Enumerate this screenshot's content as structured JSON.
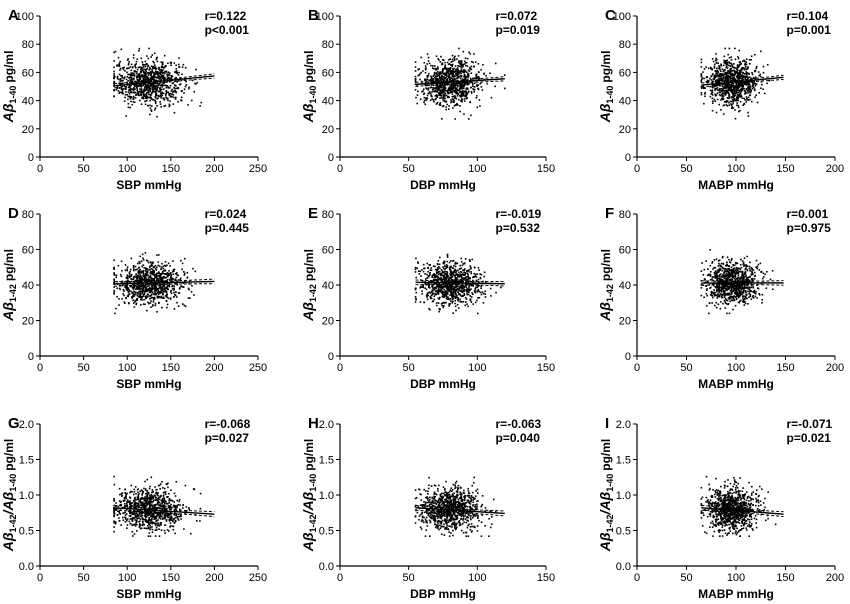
{
  "chart_data": [
    {
      "panel": "A",
      "type": "scatter",
      "xlabel": "SBP mmHg",
      "ylabel_main": "Aβ",
      "ylabel_sub": "1-40",
      "ylabel_unit": "pg/ml",
      "xlim": [
        0,
        250
      ],
      "xticks": [
        0,
        50,
        100,
        150,
        200,
        250
      ],
      "ylim": [
        0,
        100
      ],
      "yticks": [
        0,
        20,
        40,
        60,
        80,
        100
      ],
      "r": "r=0.122",
      "p": "p<0.001",
      "x_center": 125,
      "x_spread": 20,
      "x_range": [
        85,
        200
      ],
      "y_center": 53,
      "y_spread": 8,
      "y_range": [
        27,
        77
      ],
      "n_points": 900,
      "fit": [
        [
          85,
          50.5
        ],
        [
          200,
          57.5
        ]
      ],
      "ci_width": 1.5
    },
    {
      "panel": "B",
      "type": "scatter",
      "xlabel": "DBP mmHg",
      "ylabel_main": "Aβ",
      "ylabel_sub": "1-40",
      "ylabel_unit": "pg/ml",
      "xlim": [
        0,
        150
      ],
      "xticks": [
        0,
        50,
        100,
        150
      ],
      "ylim": [
        0,
        100
      ],
      "yticks": [
        0,
        20,
        40,
        60,
        80,
        100
      ],
      "r": "r=0.072",
      "p": "p=0.019",
      "x_center": 80,
      "x_spread": 11,
      "x_range": [
        55,
        120
      ],
      "y_center": 53,
      "y_spread": 8,
      "y_range": [
        27,
        77
      ],
      "n_points": 900,
      "fit": [
        [
          55,
          51.5
        ],
        [
          120,
          55.5
        ]
      ],
      "ci_width": 1.5
    },
    {
      "panel": "C",
      "type": "scatter",
      "xlabel": "MABP mmHg",
      "ylabel_main": "Aβ",
      "ylabel_sub": "1-40",
      "ylabel_unit": "pg/ml",
      "xlim": [
        0,
        200
      ],
      "xticks": [
        0,
        50,
        100,
        150,
        200
      ],
      "ylim": [
        0,
        100
      ],
      "yticks": [
        0,
        20,
        40,
        60,
        80,
        100
      ],
      "r": "r=0.104",
      "p": "p=0.001",
      "x_center": 96,
      "x_spread": 13,
      "x_range": [
        65,
        148
      ],
      "y_center": 53,
      "y_spread": 8,
      "y_range": [
        27,
        77
      ],
      "n_points": 900,
      "fit": [
        [
          65,
          51
        ],
        [
          148,
          56.5
        ]
      ],
      "ci_width": 1.5
    },
    {
      "panel": "D",
      "type": "scatter",
      "xlabel": "SBP mmHg",
      "ylabel_main": "Aβ",
      "ylabel_sub": "1-42",
      "ylabel_unit": "pg/ml",
      "xlim": [
        0,
        250
      ],
      "xticks": [
        0,
        50,
        100,
        150,
        200,
        250
      ],
      "ylim": [
        0,
        80
      ],
      "yticks": [
        0,
        20,
        40,
        60,
        80
      ],
      "r": "r=0.024",
      "p": "p=0.445",
      "x_center": 125,
      "x_spread": 20,
      "x_range": [
        85,
        200
      ],
      "y_center": 41,
      "y_spread": 6,
      "y_range": [
        24,
        62
      ],
      "n_points": 900,
      "fit": [
        [
          85,
          40.6
        ],
        [
          200,
          42
        ]
      ],
      "ci_width": 1.3
    },
    {
      "panel": "E",
      "type": "scatter",
      "xlabel": "DBP mmHg",
      "ylabel_main": "Aβ",
      "ylabel_sub": "1-42",
      "ylabel_unit": "pg/ml",
      "xlim": [
        0,
        150
      ],
      "xticks": [
        0,
        50,
        100,
        150
      ],
      "ylim": [
        0,
        80
      ],
      "yticks": [
        0,
        20,
        40,
        60,
        80
      ],
      "r": "r=-0.019",
      "p": "p=0.532",
      "x_center": 80,
      "x_spread": 11,
      "x_range": [
        55,
        120
      ],
      "y_center": 41,
      "y_spread": 6,
      "y_range": [
        24,
        62
      ],
      "n_points": 900,
      "fit": [
        [
          55,
          41.5
        ],
        [
          120,
          40.7
        ]
      ],
      "ci_width": 1.3
    },
    {
      "panel": "F",
      "type": "scatter",
      "xlabel": "MABP mmHg",
      "ylabel_main": "Aβ",
      "ylabel_sub": "1-42",
      "ylabel_unit": "pg/ml",
      "xlim": [
        0,
        200
      ],
      "xticks": [
        0,
        50,
        100,
        150,
        200
      ],
      "ylim": [
        0,
        80
      ],
      "yticks": [
        0,
        20,
        40,
        60,
        80
      ],
      "r": "r=0.001",
      "p": "p=0.975",
      "x_center": 96,
      "x_spread": 13,
      "x_range": [
        65,
        148
      ],
      "y_center": 41,
      "y_spread": 6,
      "y_range": [
        24,
        62
      ],
      "n_points": 900,
      "fit": [
        [
          65,
          41.1
        ],
        [
          148,
          41.2
        ]
      ],
      "ci_width": 1.3
    },
    {
      "panel": "G",
      "type": "scatter",
      "xlabel": "SBP mmHg",
      "ylabel_main": "Aβ",
      "ylabel_sub": "1-42",
      "ylabel_mid": "/Aβ",
      "ylabel_sub2": "1-40",
      "ylabel_unit": "pg/ml",
      "xlim": [
        0,
        250
      ],
      "xticks": [
        0,
        50,
        100,
        150,
        200,
        250
      ],
      "ylim": [
        0,
        2.0
      ],
      "yticks": [
        0.0,
        0.5,
        1.0,
        1.5,
        2.0
      ],
      "ytick_decimals": 1,
      "r": "r=-0.068",
      "p": "p=0.027",
      "x_center": 125,
      "x_spread": 20,
      "x_range": [
        85,
        200
      ],
      "y_center": 0.8,
      "y_spread": 0.15,
      "y_range": [
        0.42,
        1.7
      ],
      "n_points": 900,
      "fit": [
        [
          85,
          0.82
        ],
        [
          200,
          0.73
        ]
      ],
      "ci_width": 0.035
    },
    {
      "panel": "H",
      "type": "scatter",
      "xlabel": "DBP mmHg",
      "ylabel_main": "Aβ",
      "ylabel_sub": "1-42",
      "ylabel_mid": "/Aβ",
      "ylabel_sub2": "1-40",
      "ylabel_unit": "pg/ml",
      "xlim": [
        0,
        150
      ],
      "xticks": [
        0,
        50,
        100,
        150
      ],
      "ylim": [
        0,
        2.0
      ],
      "yticks": [
        0.0,
        0.5,
        1.0,
        1.5,
        2.0
      ],
      "ytick_decimals": 1,
      "r": "r=-0.063",
      "p": "p=0.040",
      "x_center": 80,
      "x_spread": 11,
      "x_range": [
        55,
        120
      ],
      "y_center": 0.8,
      "y_spread": 0.15,
      "y_range": [
        0.42,
        1.7
      ],
      "n_points": 900,
      "fit": [
        [
          55,
          0.82
        ],
        [
          120,
          0.74
        ]
      ],
      "ci_width": 0.035
    },
    {
      "panel": "I",
      "type": "scatter",
      "xlabel": "MABP mmHg",
      "ylabel_main": "Aβ",
      "ylabel_sub": "1-42",
      "ylabel_mid": "/Aβ",
      "ylabel_sub2": "1-40",
      "ylabel_unit": "pg/ml",
      "xlim": [
        0,
        200
      ],
      "xticks": [
        0,
        50,
        100,
        150,
        200
      ],
      "ylim": [
        0,
        2.0
      ],
      "yticks": [
        0.0,
        0.5,
        1.0,
        1.5,
        2.0
      ],
      "ytick_decimals": 1,
      "r": "r=-0.071",
      "p": "p=0.021",
      "x_center": 96,
      "x_spread": 13,
      "x_range": [
        65,
        148
      ],
      "y_center": 0.8,
      "y_spread": 0.15,
      "y_range": [
        0.42,
        1.7
      ],
      "n_points": 900,
      "fit": [
        [
          65,
          0.82
        ],
        [
          148,
          0.73
        ]
      ],
      "ci_width": 0.035
    }
  ]
}
